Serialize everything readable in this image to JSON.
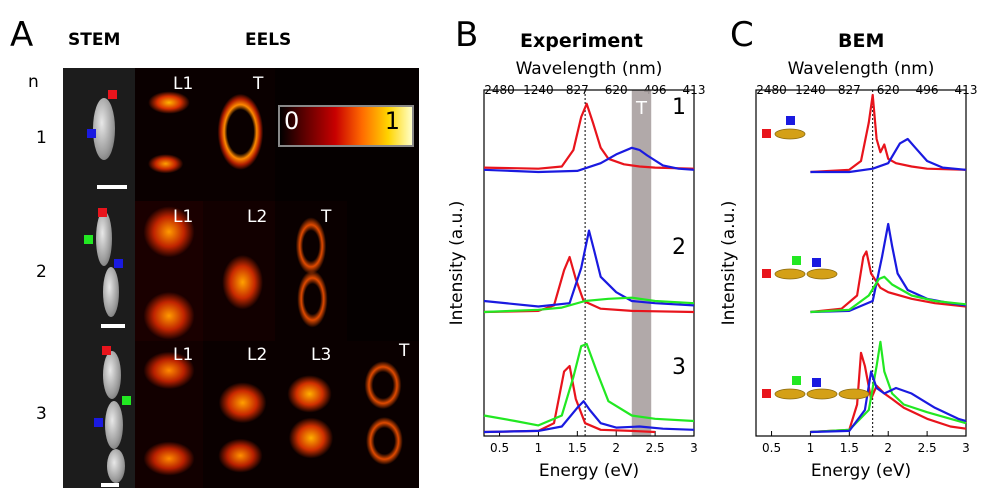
{
  "panel_a": {
    "letter": "A",
    "stem_header": "STEM",
    "eels_header": "EELS",
    "n_label": "n",
    "rows": [
      {
        "n": "1",
        "maps": [
          "L1",
          "T"
        ]
      },
      {
        "n": "2",
        "maps": [
          "L1",
          "L2",
          "T"
        ]
      },
      {
        "n": "3",
        "maps": [
          "L1",
          "L2",
          "L3",
          "T"
        ]
      }
    ],
    "colorbar": {
      "min": "0",
      "max": "1"
    }
  },
  "panel_b": {
    "letter": "B",
    "title": "Experiment"
  },
  "panel_c": {
    "letter": "C",
    "title": "BEM"
  },
  "colors": {
    "red": "#e8141c",
    "green": "#22e822",
    "blue": "#1a1ae0",
    "band": "#a8a0a0",
    "gold": "#d4a017"
  },
  "chart_data": [
    {
      "type": "line",
      "title": "Experiment",
      "xlabel": "Energy (eV)",
      "ylabel": "Intensity (a.u.)",
      "top_axis_label": "Wavelength (nm)",
      "top_ticks": [
        "2480",
        "1240",
        "827",
        "620",
        "496",
        "413"
      ],
      "top_tick_energies": [
        0.5,
        1.0,
        1.5,
        2.0,
        2.5,
        3.0
      ],
      "xlim": [
        0.3,
        3
      ],
      "xticks": [
        "0.5",
        "1",
        "1.5",
        "2",
        "2.5",
        "3"
      ],
      "vline": 1.6,
      "band": [
        2.2,
        2.45
      ],
      "band_label": "T",
      "groups": [
        {
          "label": "1",
          "series": [
            {
              "color": "red",
              "x": [
                0.3,
                1.0,
                1.3,
                1.45,
                1.55,
                1.62,
                1.7,
                1.8,
                1.9,
                2.1,
                2.3,
                2.5,
                3.0
              ],
              "y": [
                0.04,
                0.03,
                0.05,
                0.2,
                0.5,
                0.62,
                0.45,
                0.22,
                0.12,
                0.07,
                0.05,
                0.04,
                0.03
              ]
            },
            {
              "color": "blue",
              "x": [
                0.3,
                1.0,
                1.5,
                1.8,
                2.0,
                2.2,
                2.3,
                2.4,
                2.6,
                2.8,
                3.0
              ],
              "y": [
                0.02,
                0.0,
                0.01,
                0.08,
                0.16,
                0.22,
                0.2,
                0.15,
                0.06,
                0.03,
                0.02
              ]
            }
          ]
        },
        {
          "label": "2",
          "series": [
            {
              "color": "red",
              "x": [
                0.3,
                1.0,
                1.2,
                1.33,
                1.4,
                1.48,
                1.58,
                1.8,
                2.2,
                3.0
              ],
              "y": [
                0.0,
                0.01,
                0.06,
                0.38,
                0.5,
                0.3,
                0.1,
                0.03,
                0.01,
                0.0
              ]
            },
            {
              "color": "blue",
              "x": [
                0.3,
                1.0,
                1.4,
                1.55,
                1.65,
                1.72,
                1.8,
                2.0,
                2.2,
                2.5,
                3.0
              ],
              "y": [
                0.1,
                0.05,
                0.08,
                0.4,
                0.74,
                0.55,
                0.32,
                0.18,
                0.1,
                0.08,
                0.06
              ]
            },
            {
              "color": "green",
              "x": [
                0.3,
                1.0,
                1.3,
                1.6,
                1.9,
                2.2,
                2.5,
                3.0
              ],
              "y": [
                0.0,
                0.02,
                0.04,
                0.1,
                0.12,
                0.13,
                0.1,
                0.08
              ]
            }
          ]
        },
        {
          "label": "3",
          "series": [
            {
              "color": "red",
              "x": [
                0.3,
                1.0,
                1.2,
                1.33,
                1.4,
                1.48,
                1.6,
                1.8,
                2.2,
                2.5
              ],
              "y": [
                0.0,
                0.01,
                0.08,
                0.55,
                0.6,
                0.3,
                0.08,
                0.02,
                0.01,
                0.0
              ]
            },
            {
              "color": "green",
              "x": [
                0.3,
                0.7,
                1.0,
                1.3,
                1.45,
                1.55,
                1.62,
                1.75,
                1.9,
                2.2,
                2.5,
                3.0
              ],
              "y": [
                0.15,
                0.1,
                0.06,
                0.15,
                0.5,
                0.78,
                0.8,
                0.55,
                0.28,
                0.15,
                0.12,
                0.1
              ]
            },
            {
              "color": "blue",
              "x": [
                0.3,
                1.0,
                1.3,
                1.5,
                1.58,
                1.66,
                1.8,
                2.0,
                2.3,
                2.6,
                3.0
              ],
              "y": [
                0.0,
                0.01,
                0.05,
                0.22,
                0.28,
                0.2,
                0.08,
                0.04,
                0.05,
                0.03,
                0.02
              ]
            }
          ]
        }
      ]
    },
    {
      "type": "line",
      "title": "BEM",
      "xlabel": "Energy (eV)",
      "ylabel": "Intensity (a.u.)",
      "top_axis_label": "Wavelength (nm)",
      "top_ticks": [
        "2480",
        "1240",
        "827",
        "620",
        "496",
        "413"
      ],
      "top_tick_energies": [
        0.5,
        1.0,
        1.5,
        2.0,
        2.5,
        3.0
      ],
      "xlim": [
        0.3,
        3
      ],
      "xticks": [
        "0.5",
        "1",
        "1.5",
        "2",
        "2.5",
        "3"
      ],
      "vline": 1.8,
      "groups": [
        {
          "label": "",
          "particles": 1,
          "series": [
            {
              "color": "red",
              "x": [
                1.0,
                1.5,
                1.65,
                1.75,
                1.8,
                1.85,
                1.9,
                1.95,
                2.0,
                2.1,
                2.3,
                2.5,
                3.0
              ],
              "y": [
                0.0,
                0.02,
                0.1,
                0.45,
                0.7,
                0.3,
                0.18,
                0.25,
                0.12,
                0.08,
                0.05,
                0.03,
                0.02
              ]
            },
            {
              "color": "blue",
              "x": [
                1.0,
                1.5,
                1.8,
                2.0,
                2.15,
                2.25,
                2.35,
                2.5,
                2.7,
                3.0
              ],
              "y": [
                0.0,
                0.0,
                0.03,
                0.08,
                0.26,
                0.3,
                0.22,
                0.1,
                0.04,
                0.02
              ]
            }
          ]
        },
        {
          "label": "",
          "particles": 2,
          "series": [
            {
              "color": "red",
              "x": [
                1.0,
                1.4,
                1.6,
                1.68,
                1.72,
                1.78,
                1.9,
                2.0,
                2.3,
                2.6,
                3.0
              ],
              "y": [
                0.0,
                0.03,
                0.15,
                0.5,
                0.55,
                0.35,
                0.22,
                0.18,
                0.12,
                0.08,
                0.05
              ]
            },
            {
              "color": "blue",
              "x": [
                1.0,
                1.5,
                1.8,
                1.92,
                2.0,
                2.05,
                2.12,
                2.25,
                2.5,
                2.8,
                3.0
              ],
              "y": [
                0.0,
                0.01,
                0.1,
                0.5,
                0.8,
                0.6,
                0.35,
                0.2,
                0.12,
                0.08,
                0.06
              ]
            },
            {
              "color": "green",
              "x": [
                1.0,
                1.5,
                1.75,
                1.88,
                1.95,
                2.05,
                2.3,
                2.6,
                3.0
              ],
              "y": [
                0.0,
                0.02,
                0.15,
                0.3,
                0.32,
                0.25,
                0.15,
                0.1,
                0.07
              ]
            }
          ]
        },
        {
          "label": "",
          "particles": 3,
          "series": [
            {
              "color": "red",
              "x": [
                1.0,
                1.5,
                1.6,
                1.65,
                1.7,
                1.78,
                1.85,
                1.95,
                2.05,
                2.2,
                2.5,
                2.8,
                3.0
              ],
              "y": [
                0.0,
                0.02,
                0.25,
                0.72,
                0.6,
                0.3,
                0.42,
                0.35,
                0.3,
                0.22,
                0.12,
                0.05,
                0.03
              ]
            },
            {
              "color": "green",
              "x": [
                1.0,
                1.5,
                1.75,
                1.85,
                1.9,
                1.95,
                2.05,
                2.2,
                2.5,
                2.8,
                3.0
              ],
              "y": [
                0.0,
                0.02,
                0.2,
                0.6,
                0.82,
                0.55,
                0.35,
                0.25,
                0.18,
                0.12,
                0.08
              ]
            },
            {
              "color": "blue",
              "x": [
                1.0,
                1.5,
                1.7,
                1.78,
                1.85,
                1.95,
                2.1,
                2.3,
                2.6,
                2.9,
                3.0
              ],
              "y": [
                0.0,
                0.01,
                0.2,
                0.55,
                0.4,
                0.35,
                0.4,
                0.35,
                0.22,
                0.12,
                0.1
              ]
            }
          ]
        }
      ]
    }
  ]
}
